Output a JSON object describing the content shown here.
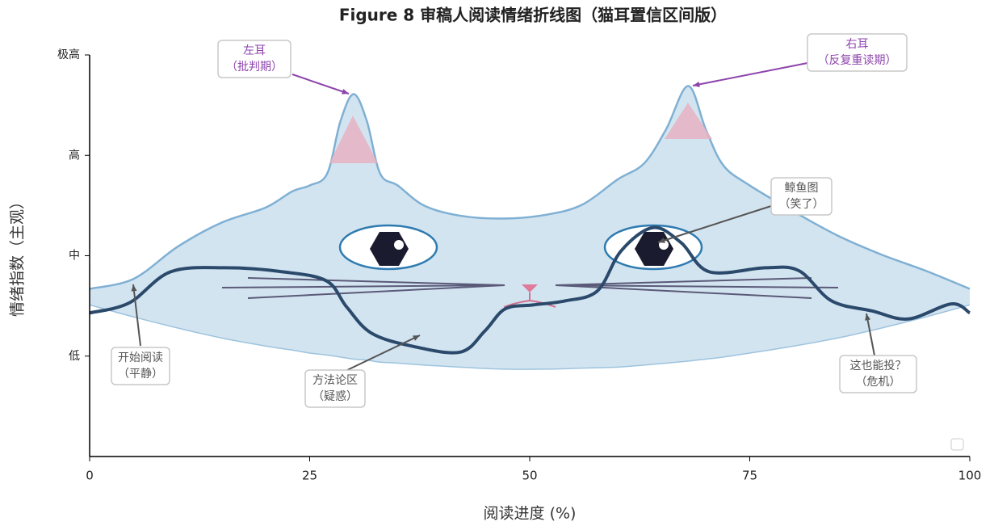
{
  "chart_data": {
    "type": "line",
    "title": "Figure 8  审稿人阅读情绪折线图（猫耳置信区间版）",
    "xlabel": "阅读进度 (%)",
    "ylabel": "情绪指数（主观）",
    "xlim": [
      0,
      100
    ],
    "ylim": [
      0,
      4
    ],
    "xticks": [
      0,
      25,
      50,
      75,
      100
    ],
    "yticks": [
      {
        "value": 1,
        "label": "低"
      },
      {
        "value": 2,
        "label": "中"
      },
      {
        "value": 3,
        "label": "高"
      },
      {
        "value": 4,
        "label": "极高"
      }
    ],
    "series": [
      {
        "color": "#2b4a6b",
        "x": [
          0,
          4.5,
          9.2,
          15.5,
          21.9,
          26.9,
          29.2,
          32,
          36.6,
          42.1,
          44.9,
          47.2,
          50.4,
          54,
          57.7,
          60.4,
          64,
          67.2,
          70.4,
          76.8,
          80.6,
          84.3,
          88.9,
          93,
          97.9,
          100
        ],
        "values": [
          1.43,
          1.53,
          1.84,
          1.88,
          1.84,
          1.75,
          1.49,
          1.23,
          1.1,
          1.04,
          1.25,
          1.47,
          1.51,
          1.55,
          1.65,
          2.05,
          2.28,
          2.13,
          1.84,
          1.88,
          1.85,
          1.55,
          1.45,
          1.37,
          1.52,
          1.43
        ]
      }
    ],
    "band": {
      "color": "#d3e4f1",
      "edge_color": "#7fb0d3",
      "x": [
        0,
        5,
        10,
        15,
        20,
        23,
        25,
        27,
        28.5,
        30,
        31.5,
        33,
        35,
        38,
        42,
        47,
        52,
        56,
        60,
        63,
        65.5,
        68,
        70,
        72,
        75,
        80,
        85,
        90,
        95,
        100
      ],
      "upper": [
        1.67,
        1.77,
        2.09,
        2.33,
        2.48,
        2.64,
        2.7,
        2.82,
        3.34,
        3.61,
        3.34,
        2.82,
        2.7,
        2.5,
        2.4,
        2.37,
        2.41,
        2.51,
        2.76,
        2.92,
        3.26,
        3.69,
        3.26,
        2.9,
        2.7,
        2.44,
        2.2,
        2.01,
        1.85,
        1.67
      ],
      "lower": [
        1.51,
        1.39,
        1.28,
        1.18,
        1.1,
        1.06,
        1.03,
        1.01,
        0.99,
        0.97,
        0.96,
        0.94,
        0.93,
        0.91,
        0.89,
        0.87,
        0.87,
        0.88,
        0.89,
        0.91,
        0.93,
        0.95,
        0.97,
        0.99,
        1.03,
        1.1,
        1.18,
        1.28,
        1.39,
        1.51
      ]
    },
    "annotations": [
      {
        "lines": [
          "左耳",
          "（批判期）"
        ],
        "color": "#8e44ad"
      },
      {
        "lines": [
          "右耳",
          "（反复重读期）"
        ],
        "color": "#8e44ad"
      },
      {
        "lines": [
          "鲸鱼图",
          "（笑了）"
        ],
        "color": "#555555"
      },
      {
        "lines": [
          "开始阅读",
          "（平静）"
        ],
        "color": "#555555"
      },
      {
        "lines": [
          "方法论区",
          "（疑惑）"
        ],
        "color": "#555555"
      },
      {
        "lines": [
          "这也能投？",
          "（危机）"
        ],
        "color": "#555555"
      }
    ]
  }
}
